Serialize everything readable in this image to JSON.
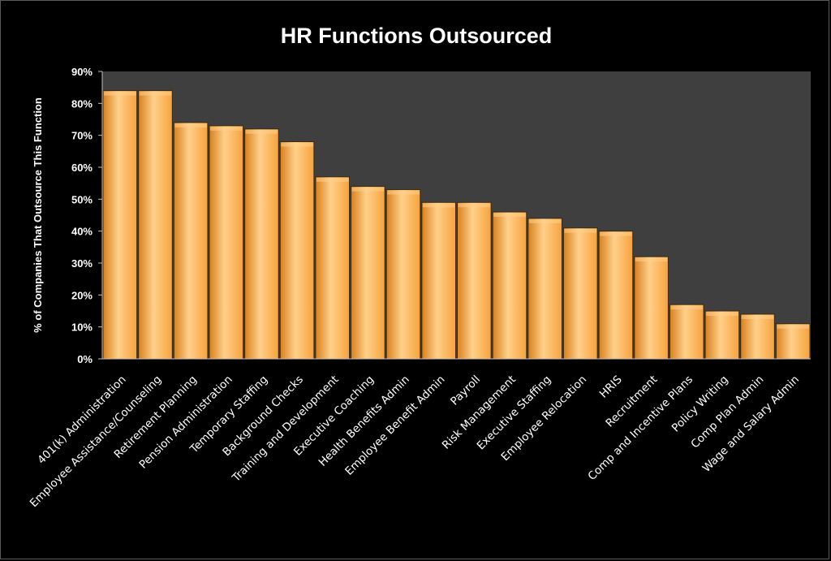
{
  "chart_data": {
    "type": "bar",
    "title": "HR Functions Outsourced",
    "xlabel": "",
    "ylabel": "% of Companies That Outsource This Function",
    "ylim": [
      0,
      90
    ],
    "yticks": [
      "0%",
      "10%",
      "20%",
      "30%",
      "40%",
      "50%",
      "60%",
      "70%",
      "80%",
      "90%"
    ],
    "grid": false,
    "legend": "none",
    "categories": [
      "401(k) Administration",
      "Employee Assistance/Counseling",
      "Retirement Planning",
      "Pension Administration",
      "Temporary Staffing",
      "Background Checks",
      "Training and Development",
      "Executive Coaching",
      "Health Benefits Admin",
      "Employee Benefit Admin",
      "Payroll",
      "Risk Management",
      "Executive Staffing",
      "Employee Relocation",
      "HRIS",
      "Recruitment",
      "Comp and Incentive Plans",
      "Policy Writing",
      "Comp Plan Admin",
      "Wage and Salary Admin"
    ],
    "values": [
      84,
      84,
      74,
      73,
      72,
      68,
      57,
      54,
      53,
      49,
      49,
      46,
      44,
      41,
      40,
      32,
      17,
      15,
      14,
      11
    ],
    "colors": {
      "bar": "#f7a23c",
      "bar_light": "#ffd08a",
      "bar_dark": "#d9801c",
      "plot_bg": "#3f3f3f",
      "text": "#ffffff"
    }
  }
}
